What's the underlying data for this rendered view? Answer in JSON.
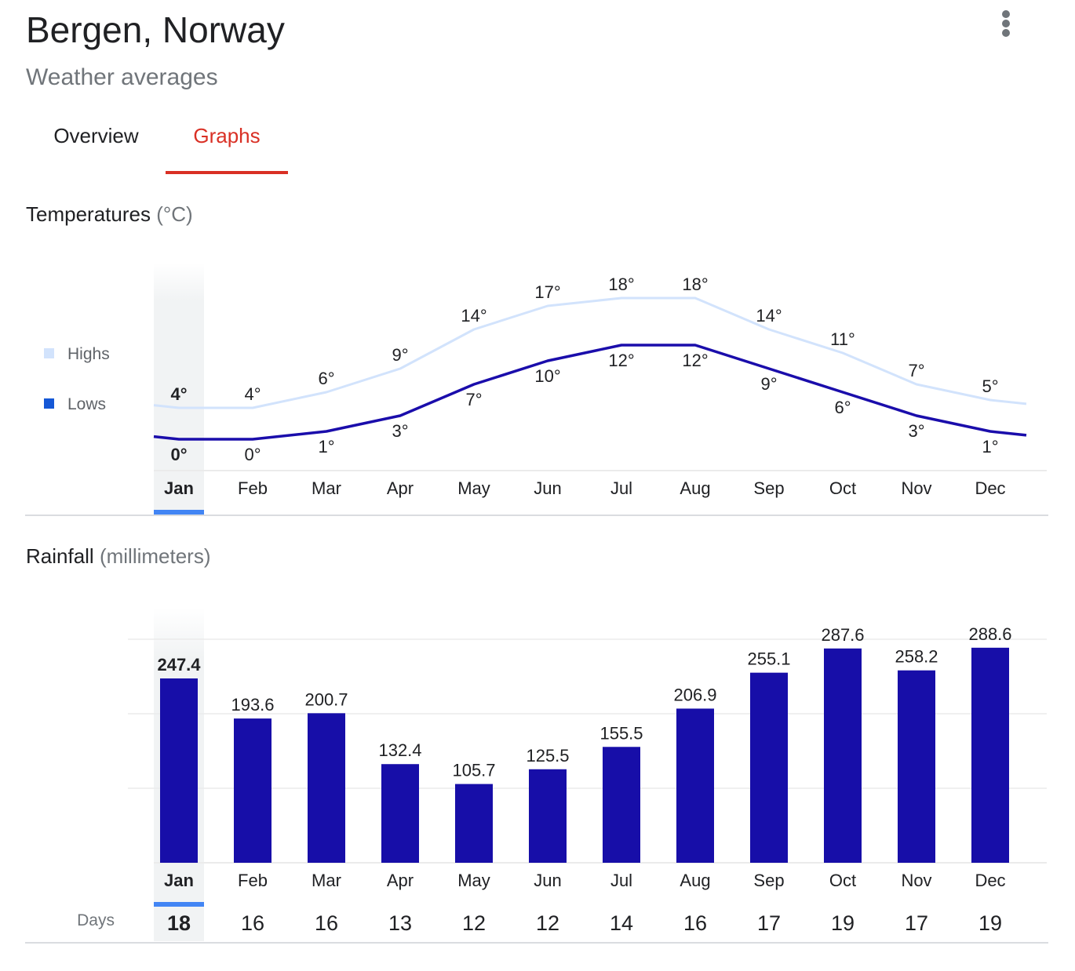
{
  "header": {
    "title": "Bergen, Norway",
    "subtitle": "Weather averages",
    "menu_icon": "more-vert-icon"
  },
  "tabs": [
    {
      "label": "Overview",
      "selected": false
    },
    {
      "label": "Graphs",
      "selected": true
    }
  ],
  "colors": {
    "accent": "#d93025",
    "highs": "#d2e3fc",
    "lows": "#1a0dab",
    "lows_legend": "#1558d6",
    "bars": "#170ea8",
    "selection": "#4285f4"
  },
  "selected_month": "Jan",
  "temperature": {
    "title": "Temperatures",
    "unit": "(°C)"
  },
  "rainfall": {
    "title": "Rainfall",
    "unit": "(millimeters)",
    "days_label": "Days"
  },
  "chart_data": [
    {
      "type": "line",
      "categories": [
        "Jan",
        "Feb",
        "Mar",
        "Apr",
        "May",
        "Jun",
        "Jul",
        "Aug",
        "Sep",
        "Oct",
        "Nov",
        "Dec"
      ],
      "series": [
        {
          "name": "Highs",
          "values": [
            4,
            4,
            6,
            9,
            14,
            17,
            18,
            18,
            14,
            11,
            7,
            5
          ],
          "color": "#d2e3fc"
        },
        {
          "name": "Lows",
          "values": [
            0,
            0,
            1,
            3,
            7,
            10,
            12,
            12,
            9,
            6,
            3,
            1
          ],
          "color": "#1a0dab"
        }
      ],
      "value_suffix": "°",
      "legend": "left",
      "grid": false
    },
    {
      "type": "bar",
      "categories": [
        "Jan",
        "Feb",
        "Mar",
        "Apr",
        "May",
        "Jun",
        "Jul",
        "Aug",
        "Sep",
        "Oct",
        "Nov",
        "Dec"
      ],
      "values": [
        247.4,
        193.6,
        200.7,
        132.4,
        105.7,
        125.5,
        155.5,
        206.9,
        255.1,
        287.6,
        258.2,
        288.6
      ],
      "labels": [
        "247.4",
        "193.6",
        "200.7",
        "132.4",
        "105.7",
        "125.5",
        "155.5",
        "206.9",
        "255.1",
        "287.6",
        "258.2",
        "288.6"
      ],
      "days": [
        18,
        16,
        16,
        13,
        12,
        12,
        14,
        16,
        17,
        19,
        17,
        19
      ],
      "ylim": [
        0,
        300
      ],
      "grid": true
    }
  ]
}
